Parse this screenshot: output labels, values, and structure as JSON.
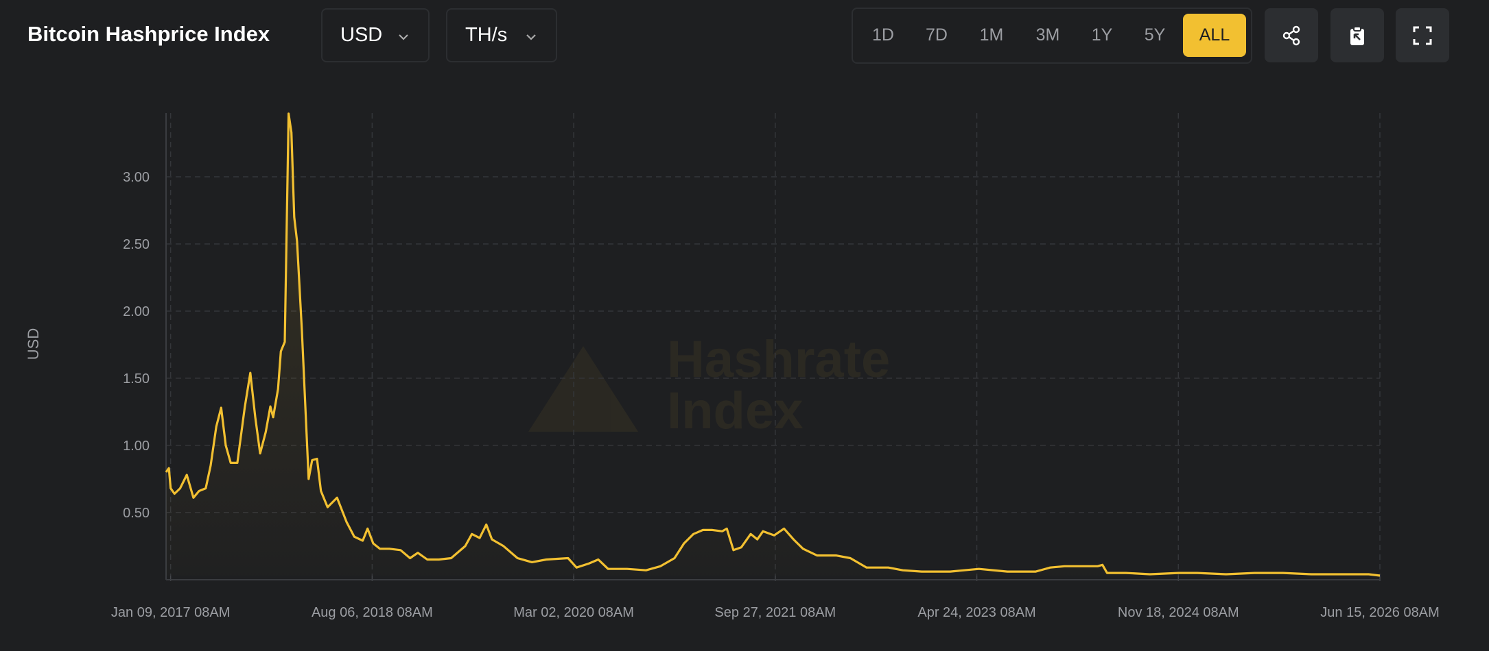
{
  "header": {
    "title": "Bitcoin Hashprice Index",
    "currency": "USD",
    "unit": "TH/s",
    "ranges": [
      "1D",
      "7D",
      "1M",
      "3M",
      "1Y",
      "5Y",
      "ALL"
    ],
    "active_range": "ALL"
  },
  "watermark": [
    "Hashrate",
    "Index"
  ],
  "chart_data": {
    "type": "line",
    "y_label": "USD",
    "color": "#f2c031",
    "grid": true,
    "x": [
      "2016-12-27",
      "2017-01-04",
      "2017-01-09",
      "2017-01-20",
      "2017-02-05",
      "2017-02-24",
      "2017-03-15",
      "2017-03-31",
      "2017-04-19",
      "2017-05-03",
      "2017-05-19",
      "2017-06-02",
      "2017-06-15",
      "2017-06-29",
      "2017-07-18",
      "2017-08-08",
      "2017-08-24",
      "2017-09-07",
      "2017-09-21",
      "2017-10-07",
      "2017-10-20",
      "2017-10-28",
      "2017-11-11",
      "2017-11-19",
      "2017-11-30",
      "2017-12-11",
      "2017-12-19",
      "2017-12-27",
      "2018-01-04",
      "2018-01-18",
      "2018-01-29",
      "2018-02-06",
      "2018-02-16",
      "2018-03-02",
      "2018-03-13",
      "2018-04-01",
      "2018-04-28",
      "2018-05-25",
      "2018-06-16",
      "2018-07-10",
      "2018-07-24",
      "2018-08-09",
      "2018-08-28",
      "2018-09-24",
      "2018-10-26",
      "2018-11-22",
      "2018-12-14",
      "2019-01-10",
      "2019-02-12",
      "2019-03-19",
      "2019-04-28",
      "2019-05-17",
      "2019-06-08",
      "2019-06-27",
      "2019-07-13",
      "2019-08-15",
      "2019-09-24",
      "2019-11-04",
      "2019-12-15",
      "2020-02-15",
      "2020-03-10",
      "2020-04-14",
      "2020-05-11",
      "2020-06-08",
      "2020-08-01",
      "2020-09-24",
      "2020-11-04",
      "2020-12-14",
      "2021-01-10",
      "2021-02-06",
      "2021-03-05",
      "2021-04-01",
      "2021-04-29",
      "2021-05-12",
      "2021-05-31",
      "2021-06-22",
      "2021-07-19",
      "2021-08-07",
      "2021-08-23",
      "2021-09-24",
      "2021-10-22",
      "2021-11-18",
      "2021-12-15",
      "2022-01-24",
      "2022-03-19",
      "2022-04-29",
      "2022-06-14",
      "2022-08-15",
      "2022-09-25",
      "2022-11-18",
      "2023-02-07",
      "2023-04-30",
      "2023-07-20",
      "2023-10-09",
      "2023-11-19",
      "2023-12-30",
      "2024-02-22",
      "2024-04-02",
      "2024-04-16",
      "2024-04-29",
      "2024-06-22",
      "2024-08-29",
      "2024-11-18",
      "2025-01-11",
      "2025-04-03",
      "2025-06-23",
      "2025-09-12",
      "2025-12-02",
      "2026-02-22",
      "2026-05-14",
      "2026-06-15"
    ],
    "values": [
      0.8,
      0.83,
      0.68,
      0.64,
      0.68,
      0.78,
      0.61,
      0.66,
      0.68,
      0.85,
      1.14,
      1.28,
      1.0,
      0.87,
      0.87,
      1.28,
      1.54,
      1.21,
      0.94,
      1.1,
      1.29,
      1.21,
      1.42,
      1.7,
      1.77,
      3.47,
      3.33,
      2.7,
      2.52,
      1.85,
      1.21,
      0.75,
      0.89,
      0.9,
      0.66,
      0.54,
      0.61,
      0.43,
      0.32,
      0.29,
      0.38,
      0.27,
      0.23,
      0.23,
      0.22,
      0.16,
      0.2,
      0.15,
      0.15,
      0.16,
      0.25,
      0.34,
      0.31,
      0.41,
      0.3,
      0.25,
      0.16,
      0.13,
      0.15,
      0.16,
      0.09,
      0.12,
      0.15,
      0.08,
      0.08,
      0.07,
      0.1,
      0.16,
      0.27,
      0.34,
      0.37,
      0.37,
      0.36,
      0.38,
      0.22,
      0.24,
      0.34,
      0.3,
      0.36,
      0.33,
      0.38,
      0.3,
      0.23,
      0.18,
      0.18,
      0.16,
      0.09,
      0.09,
      0.07,
      0.06,
      0.06,
      0.08,
      0.06,
      0.06,
      0.09,
      0.1,
      0.1,
      0.1,
      0.11,
      0.05,
      0.05,
      0.04,
      0.05,
      0.05,
      0.04,
      0.05,
      0.05,
      0.04,
      0.04,
      0.04,
      0.03
    ],
    "xlim": [
      "2016-12-27",
      "2026-06-15"
    ],
    "xticks": [
      {
        "value": "2017-01-09",
        "label": "Jan 09, 2017 08AM"
      },
      {
        "value": "2018-08-06",
        "label": "Aug 06, 2018 08AM"
      },
      {
        "value": "2020-03-02",
        "label": "Mar 02, 2020 08AM"
      },
      {
        "value": "2021-09-27",
        "label": "Sep 27, 2021 08AM"
      },
      {
        "value": "2023-04-24",
        "label": "Apr 24, 2023 08AM"
      },
      {
        "value": "2024-11-18",
        "label": "Nov 18, 2024 08AM"
      },
      {
        "value": "2026-06-15",
        "label": "Jun 15, 2026 08AM"
      }
    ],
    "ylim": [
      0.03,
      3.5
    ],
    "yticks": [
      {
        "value": 0.5,
        "label": "0.50"
      },
      {
        "value": 1,
        "label": "1.00"
      },
      {
        "value": 1.5,
        "label": "1.50"
      },
      {
        "value": 2,
        "label": "2.00"
      },
      {
        "value": 2.5,
        "label": "2.50"
      },
      {
        "value": 3,
        "label": "3.00"
      }
    ]
  }
}
